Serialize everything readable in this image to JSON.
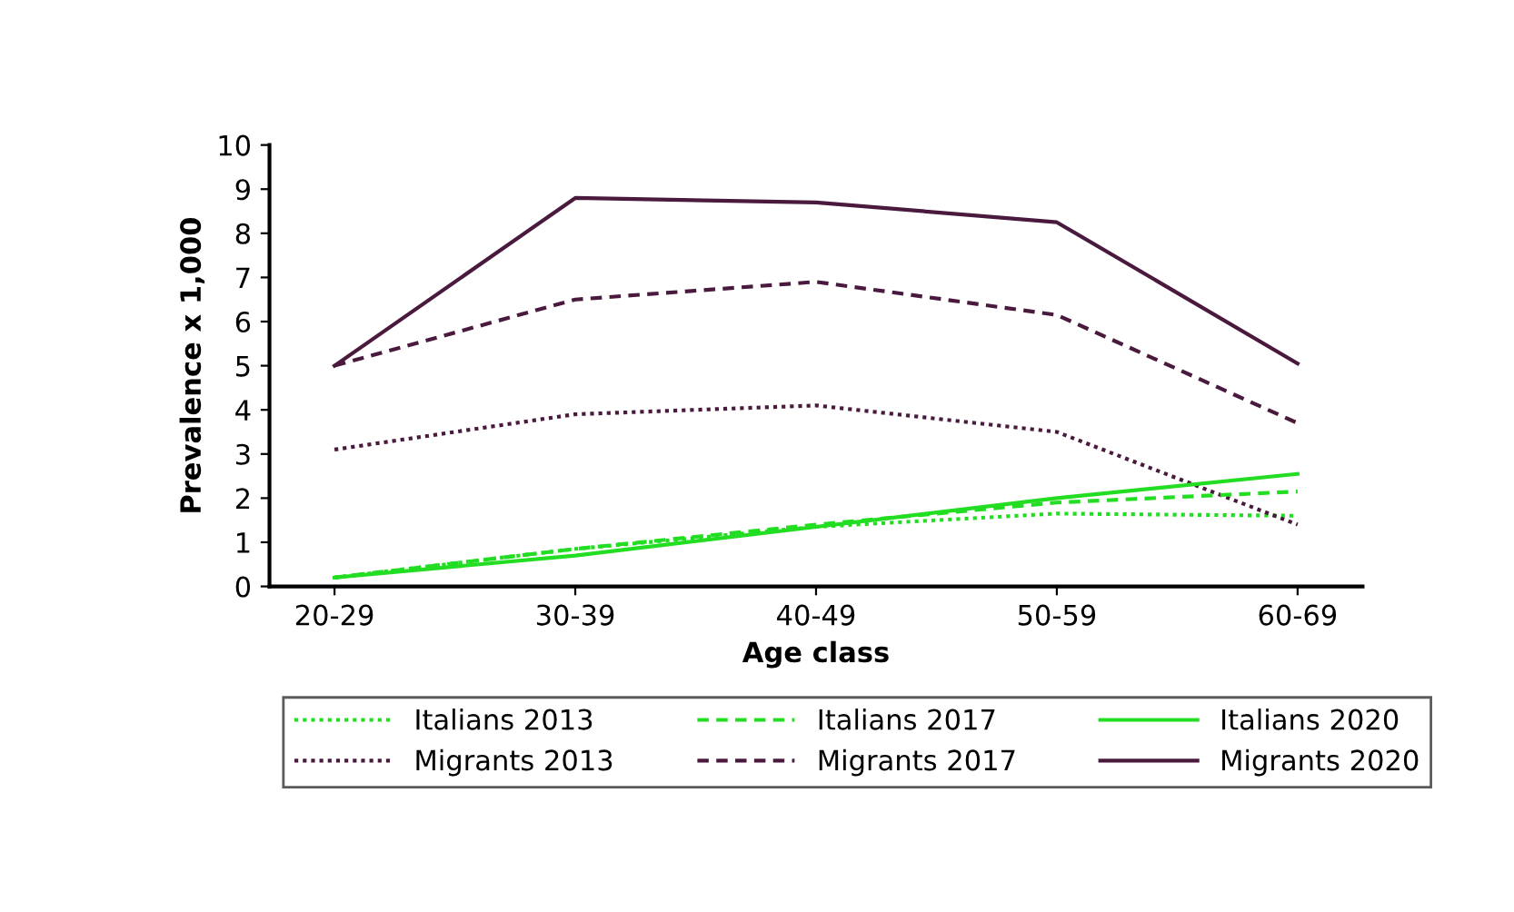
{
  "chart_data": {
    "type": "line",
    "xlabel": "Age class",
    "ylabel": "Prevalence x 1,000",
    "categories": [
      "20-29",
      "30-39",
      "40-49",
      "50-59",
      "60-69"
    ],
    "series": [
      {
        "name": "Italians 2013",
        "color": "#22dd22",
        "line_style": "dotted",
        "values": [
          0.2,
          0.85,
          1.35,
          1.65,
          1.6
        ]
      },
      {
        "name": "Migrants 2013",
        "color": "#4a1a3e",
        "line_style": "dotted",
        "values": [
          3.1,
          3.9,
          4.1,
          3.5,
          1.4
        ]
      },
      {
        "name": "Italians 2017",
        "color": "#22dd22",
        "line_style": "dashed",
        "values": [
          0.2,
          0.85,
          1.4,
          1.9,
          2.15
        ]
      },
      {
        "name": "Migrants 2017",
        "color": "#4a1a3e",
        "line_style": "dashed",
        "values": [
          5.0,
          6.5,
          6.9,
          6.15,
          3.7
        ]
      },
      {
        "name": "Italians 2020",
        "color": "#22dd22",
        "line_style": "solid",
        "values": [
          0.2,
          0.7,
          1.35,
          2.0,
          2.55
        ]
      },
      {
        "name": "Migrants 2020",
        "color": "#4a1a3e",
        "line_style": "solid",
        "values": [
          5.0,
          8.8,
          8.7,
          8.25,
          5.05
        ]
      }
    ],
    "ylim": [
      0,
      10
    ],
    "yticks": [
      0,
      1,
      2,
      3,
      4,
      5,
      6,
      7,
      8,
      9,
      10
    ],
    "grid": false,
    "legend": "bottom",
    "marker": "none"
  }
}
